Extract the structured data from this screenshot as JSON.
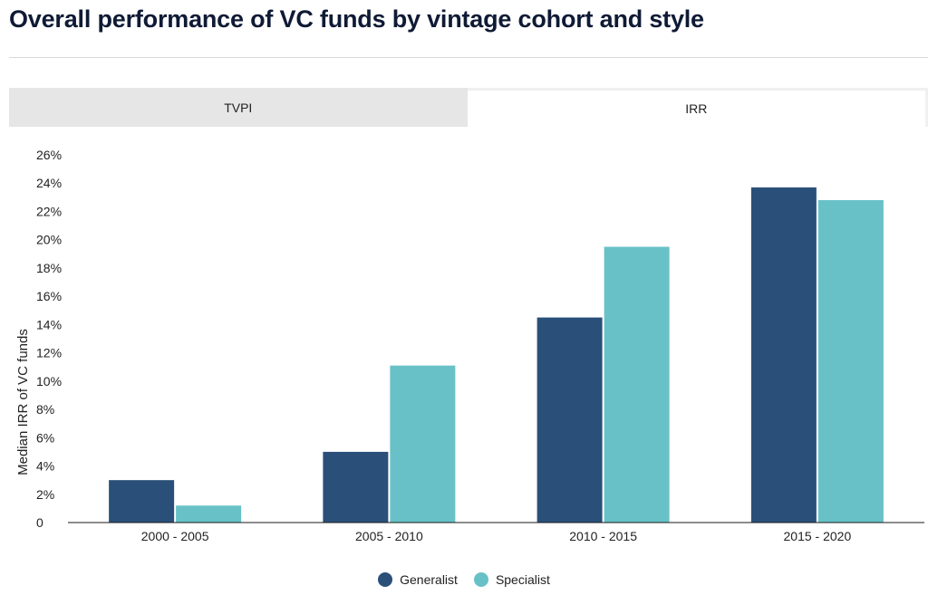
{
  "page": {
    "title": "Overall performance of VC funds by vintage cohort and style"
  },
  "tabs": [
    {
      "label": "TVPI",
      "active": false
    },
    {
      "label": "IRR",
      "active": true
    }
  ],
  "colors": {
    "generalist": "#2a5079",
    "specialist": "#68c1c7",
    "axis": "#1a1a1a"
  },
  "chart_data": {
    "type": "bar",
    "title": "",
    "xlabel": "",
    "ylabel": "Median IRR of VC funds",
    "categories": [
      "2000 - 2005",
      "2005 - 2010",
      "2010 - 2015",
      "2015 - 2020"
    ],
    "series": [
      {
        "name": "Generalist",
        "values": [
          3.0,
          5.0,
          14.5,
          23.7
        ]
      },
      {
        "name": "Specialist",
        "values": [
          1.2,
          11.1,
          19.5,
          22.8
        ]
      }
    ],
    "ylim": [
      0,
      26
    ],
    "yticks": [
      "0",
      "2%",
      "4%",
      "6%",
      "8%",
      "10%",
      "12%",
      "14%",
      "16%",
      "18%",
      "20%",
      "22%",
      "24%",
      "26%"
    ],
    "grid": false,
    "legend": "bottom-center"
  }
}
